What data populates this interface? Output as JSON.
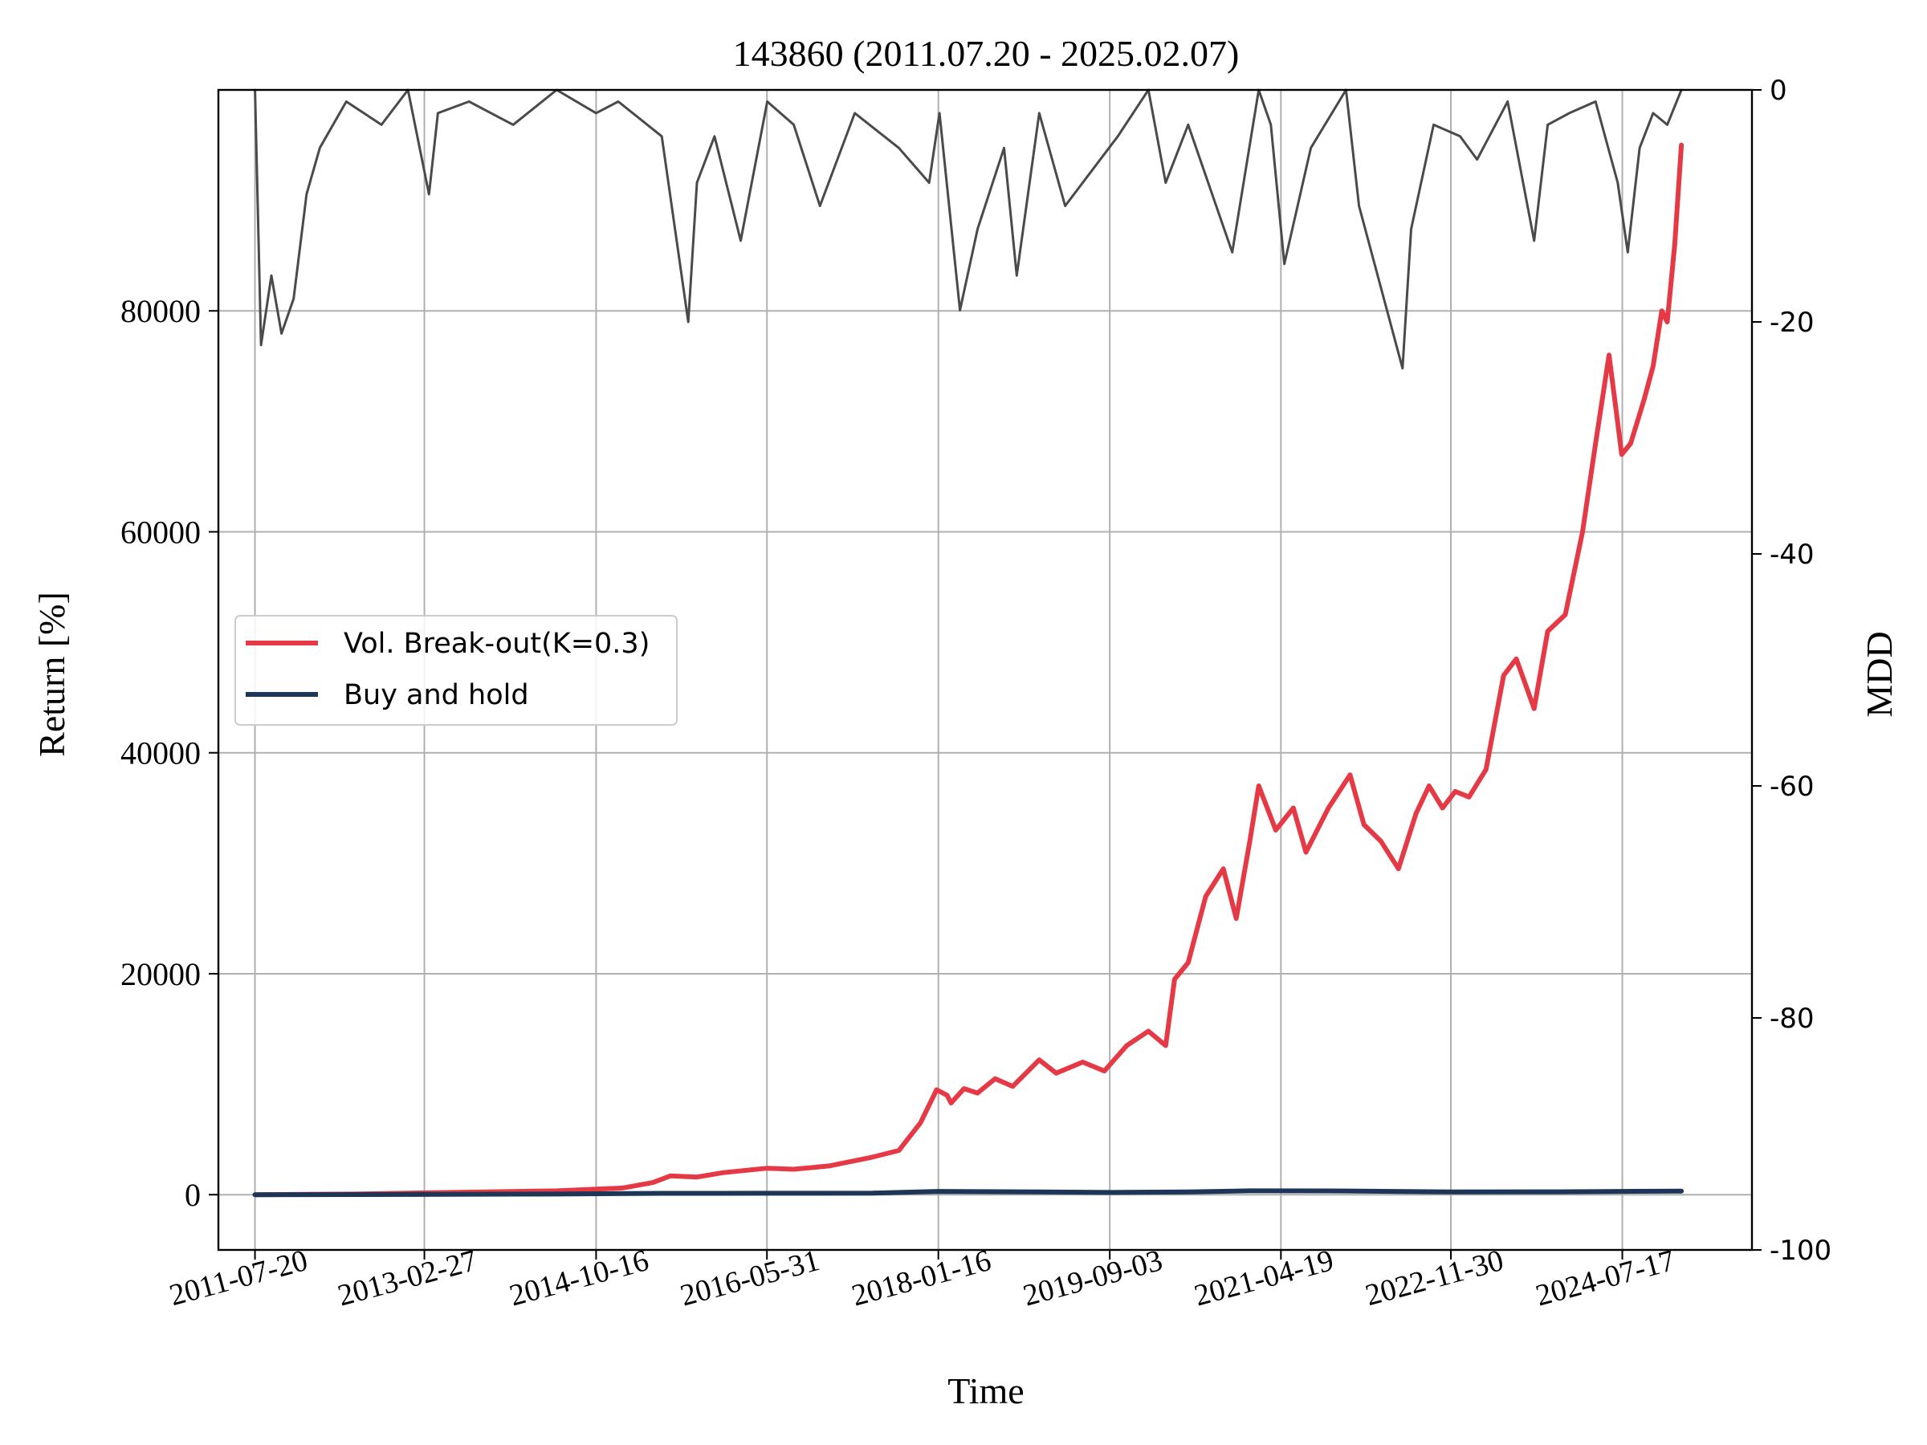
{
  "chart_data": {
    "type": "line",
    "title": "143860 (2011.07.20 - 2025.02.07)",
    "xlabel": "Time",
    "ylabel": "Return [%]",
    "y2label": "MDD",
    "x_range": [
      "2011-03-15",
      "2025-10-10"
    ],
    "ylim": [
      -5000,
      100000
    ],
    "y2lim": [
      -100,
      0
    ],
    "x_ticks": [
      "2011-07-20",
      "2013-02-27",
      "2014-10-16",
      "2016-05-31",
      "2018-01-16",
      "2019-09-03",
      "2021-04-19",
      "2022-11-30",
      "2024-07-17"
    ],
    "y_ticks": [
      0,
      20000,
      40000,
      60000,
      80000
    ],
    "y2_ticks": [
      0,
      -20,
      -40,
      -60,
      -80,
      -100
    ],
    "grid": true,
    "legend_position": "center-left",
    "series": [
      {
        "name": "Vol. Break-out(K=0.3)",
        "axis": "left",
        "color": "#e63946",
        "points": [
          [
            "2011-07-20",
            0
          ],
          [
            "2012-07-01",
            60
          ],
          [
            "2013-06-01",
            200
          ],
          [
            "2014-06-01",
            350
          ],
          [
            "2015-01-15",
            600
          ],
          [
            "2015-05-01",
            1100
          ],
          [
            "2015-07-01",
            1700
          ],
          [
            "2015-10-01",
            1600
          ],
          [
            "2016-01-01",
            2000
          ],
          [
            "2016-06-01",
            2400
          ],
          [
            "2016-09-01",
            2300
          ],
          [
            "2017-01-01",
            2600
          ],
          [
            "2017-06-01",
            3400
          ],
          [
            "2017-09-01",
            4000
          ],
          [
            "2017-11-15",
            6500
          ],
          [
            "2018-01-10",
            9500
          ],
          [
            "2018-02-15",
            9000
          ],
          [
            "2018-03-01",
            8300
          ],
          [
            "2018-04-15",
            9600
          ],
          [
            "2018-06-01",
            9200
          ],
          [
            "2018-08-01",
            10500
          ],
          [
            "2018-10-01",
            9800
          ],
          [
            "2019-01-01",
            12200
          ],
          [
            "2019-03-01",
            11000
          ],
          [
            "2019-06-01",
            12000
          ],
          [
            "2019-08-15",
            11200
          ],
          [
            "2019-11-01",
            13500
          ],
          [
            "2020-01-15",
            14800
          ],
          [
            "2020-03-15",
            13500
          ],
          [
            "2020-04-15",
            19500
          ],
          [
            "2020-06-01",
            21000
          ],
          [
            "2020-08-01",
            27000
          ],
          [
            "2020-10-01",
            29500
          ],
          [
            "2020-11-15",
            25000
          ],
          [
            "2021-01-01",
            32000
          ],
          [
            "2021-02-01",
            37000
          ],
          [
            "2021-04-01",
            33000
          ],
          [
            "2021-06-01",
            35000
          ],
          [
            "2021-07-15",
            31000
          ],
          [
            "2021-10-01",
            35000
          ],
          [
            "2021-12-15",
            38000
          ],
          [
            "2022-02-01",
            33500
          ],
          [
            "2022-04-01",
            32000
          ],
          [
            "2022-06-01",
            29500
          ],
          [
            "2022-08-01",
            34500
          ],
          [
            "2022-09-15",
            37000
          ],
          [
            "2022-11-01",
            35000
          ],
          [
            "2022-12-15",
            36500
          ],
          [
            "2023-02-01",
            36000
          ],
          [
            "2023-04-01",
            38500
          ],
          [
            "2023-06-01",
            47000
          ],
          [
            "2023-07-15",
            48500
          ],
          [
            "2023-09-15",
            44000
          ],
          [
            "2023-11-01",
            51000
          ],
          [
            "2024-01-01",
            52500
          ],
          [
            "2024-03-01",
            60000
          ],
          [
            "2024-04-15",
            68000
          ],
          [
            "2024-06-01",
            76000
          ],
          [
            "2024-07-15",
            67000
          ],
          [
            "2024-08-15",
            68000
          ],
          [
            "2024-10-01",
            72000
          ],
          [
            "2024-11-01",
            75000
          ],
          [
            "2024-12-01",
            80000
          ],
          [
            "2024-12-20",
            79000
          ],
          [
            "2025-01-15",
            86000
          ],
          [
            "2025-02-07",
            95000
          ]
        ]
      },
      {
        "name": "Buy and hold",
        "axis": "left",
        "color": "#1d3557",
        "points": [
          [
            "2011-07-20",
            0
          ],
          [
            "2013-01-01",
            20
          ],
          [
            "2014-06-01",
            60
          ],
          [
            "2015-06-01",
            120
          ],
          [
            "2016-06-01",
            130
          ],
          [
            "2017-06-01",
            140
          ],
          [
            "2018-01-16",
            300
          ],
          [
            "2019-01-01",
            250
          ],
          [
            "2019-09-03",
            200
          ],
          [
            "2020-06-01",
            250
          ],
          [
            "2021-01-01",
            350
          ],
          [
            "2021-12-01",
            330
          ],
          [
            "2022-11-30",
            250
          ],
          [
            "2023-12-01",
            260
          ],
          [
            "2024-07-17",
            300
          ],
          [
            "2025-02-07",
            320
          ]
        ]
      },
      {
        "name": "MDD",
        "axis": "right",
        "color": "#4a4a4a",
        "points": [
          [
            "2011-07-20",
            0
          ],
          [
            "2011-08-10",
            -22
          ],
          [
            "2011-09-15",
            -16
          ],
          [
            "2011-10-20",
            -21
          ],
          [
            "2011-12-01",
            -18
          ],
          [
            "2012-01-15",
            -9
          ],
          [
            "2012-03-01",
            -5
          ],
          [
            "2012-06-01",
            -1
          ],
          [
            "2012-10-01",
            -3
          ],
          [
            "2013-01-01",
            0
          ],
          [
            "2013-03-15",
            -9
          ],
          [
            "2013-04-15",
            -2
          ],
          [
            "2013-08-01",
            -1
          ],
          [
            "2014-01-01",
            -3
          ],
          [
            "2014-06-01",
            0
          ],
          [
            "2014-10-16",
            -2
          ],
          [
            "2015-01-01",
            -1
          ],
          [
            "2015-06-01",
            -4
          ],
          [
            "2015-09-01",
            -20
          ],
          [
            "2015-10-01",
            -8
          ],
          [
            "2015-12-01",
            -4
          ],
          [
            "2016-03-01",
            -13
          ],
          [
            "2016-06-01",
            -1
          ],
          [
            "2016-09-01",
            -3
          ],
          [
            "2016-12-01",
            -10
          ],
          [
            "2017-04-01",
            -2
          ],
          [
            "2017-09-01",
            -5
          ],
          [
            "2017-12-15",
            -8
          ],
          [
            "2018-01-20",
            -2
          ],
          [
            "2018-04-01",
            -19
          ],
          [
            "2018-06-01",
            -12
          ],
          [
            "2018-09-01",
            -5
          ],
          [
            "2018-10-15",
            -16
          ],
          [
            "2019-01-01",
            -2
          ],
          [
            "2019-04-01",
            -10
          ],
          [
            "2019-08-01",
            -6
          ],
          [
            "2019-10-01",
            -4
          ],
          [
            "2020-01-15",
            0
          ],
          [
            "2020-03-15",
            -8
          ],
          [
            "2020-06-01",
            -3
          ],
          [
            "2020-11-01",
            -14
          ],
          [
            "2021-02-01",
            0
          ],
          [
            "2021-03-15",
            -3
          ],
          [
            "2021-05-01",
            -15
          ],
          [
            "2021-08-01",
            -5
          ],
          [
            "2021-12-01",
            0
          ],
          [
            "2022-01-15",
            -10
          ],
          [
            "2022-06-15",
            -24
          ],
          [
            "2022-07-15",
            -12
          ],
          [
            "2022-10-01",
            -3
          ],
          [
            "2023-01-01",
            -4
          ],
          [
            "2023-03-01",
            -6
          ],
          [
            "2023-06-15",
            -1
          ],
          [
            "2023-09-15",
            -13
          ],
          [
            "2023-11-01",
            -3
          ],
          [
            "2024-01-15",
            -2
          ],
          [
            "2024-04-15",
            -1
          ],
          [
            "2024-07-01",
            -8
          ],
          [
            "2024-08-05",
            -14
          ],
          [
            "2024-09-15",
            -5
          ],
          [
            "2024-11-01",
            -2
          ],
          [
            "2024-12-20",
            -3
          ],
          [
            "2025-02-07",
            0
          ]
        ]
      }
    ]
  }
}
